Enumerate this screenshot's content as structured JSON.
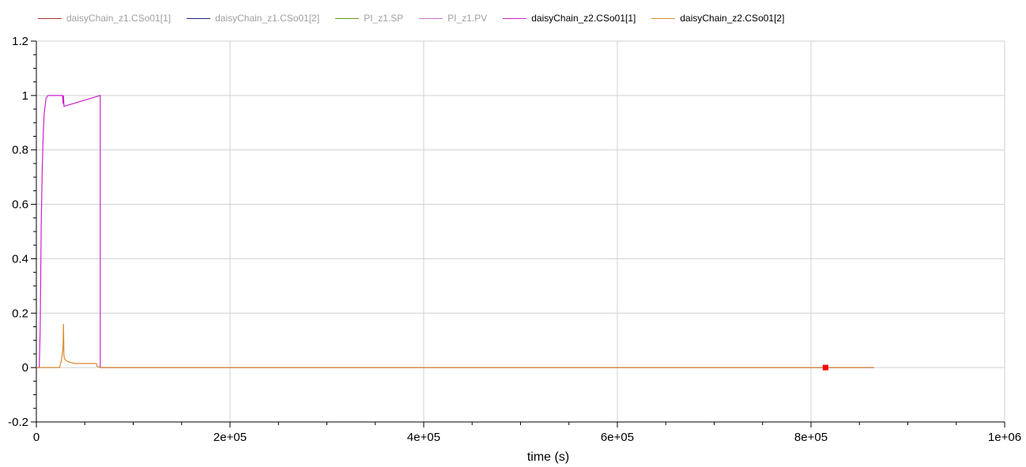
{
  "chart_data": {
    "type": "line",
    "xlabel": "time (s)",
    "ylabel": "",
    "xlim": [
      0,
      1000000
    ],
    "ylim": [
      -0.2,
      1.2
    ],
    "x_ticks": [
      0,
      200000,
      400000,
      600000,
      800000,
      1000000
    ],
    "x_tick_labels": [
      "0",
      "2e+05",
      "4e+05",
      "6e+05",
      "8e+05",
      "1e+06"
    ],
    "y_ticks": [
      -0.2,
      0,
      0.2,
      0.4,
      0.6,
      0.8,
      1,
      1.2
    ],
    "y_tick_labels": [
      "-0.2",
      "0",
      "0.2",
      "0.4",
      "0.6",
      "0.8",
      "1",
      "1.2"
    ],
    "grid": true,
    "legend_position": "top-left",
    "series": [
      {
        "name": "daisyChain_z1.CSo01[1]",
        "color": "#b03030",
        "active": false,
        "x": [],
        "y": []
      },
      {
        "name": "daisyChain_z1.CSo01[2]",
        "color": "#202080",
        "active": false,
        "x": [],
        "y": []
      },
      {
        "name": "PI_z1.SP",
        "color": "#6a9a1f",
        "active": false,
        "x": [],
        "y": []
      },
      {
        "name": "PI_z1.PV",
        "color": "#d070d0",
        "active": false,
        "x": [],
        "y": []
      },
      {
        "name": "daisyChain_z2.CSo01[1]",
        "color": "#cc22cc",
        "active": true,
        "x": [
          0,
          3000,
          4000,
          5000,
          6000,
          7000,
          8000,
          10000,
          12000,
          27000,
          27500,
          28000,
          28500,
          66000,
          66000,
          865000
        ],
        "y": [
          0,
          0,
          0.15,
          0.52,
          0.72,
          0.85,
          0.93,
          0.99,
          1,
          1,
          0.97,
          1,
          0.96,
          1,
          0,
          0
        ]
      },
      {
        "name": "daisyChain_z2.CSo01[2]",
        "color": "#d98a30",
        "active": true,
        "x": [
          0,
          24000,
          26000,
          27500,
          28000,
          28500,
          29500,
          31000,
          34000,
          40000,
          50000,
          62000,
          62500,
          64000,
          66000,
          865000
        ],
        "y": [
          0,
          0,
          0.03,
          0.07,
          0.16,
          0.04,
          0.03,
          0.025,
          0.02,
          0.015,
          0.015,
          0.015,
          0.005,
          0.003,
          0,
          0
        ]
      }
    ],
    "marker": {
      "x": 815000,
      "y": 0,
      "color": "#ff0000"
    }
  }
}
